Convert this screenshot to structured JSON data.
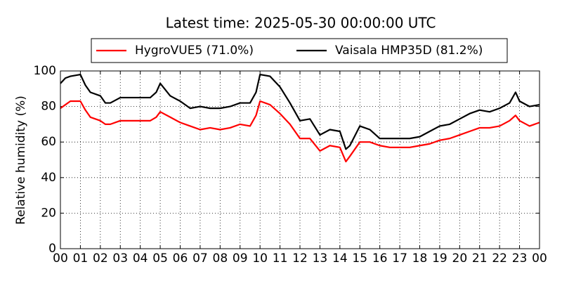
{
  "chart_data": {
    "type": "line",
    "title": "Latest time: 2025-05-30 00:00:00 UTC",
    "y_label": "Relative humidity (%)",
    "x": [
      0,
      0.25,
      0.5,
      1,
      1.25,
      1.5,
      2,
      2.25,
      2.5,
      3,
      3.5,
      4,
      4.5,
      4.8,
      5,
      5.5,
      6,
      6.5,
      7,
      7.5,
      8,
      8.5,
      9,
      9.5,
      9.8,
      10,
      10.5,
      11,
      11.5,
      12,
      12.5,
      13,
      13.5,
      14,
      14.3,
      14.5,
      15,
      15.5,
      16,
      16.5,
      17,
      17.5,
      18,
      18.5,
      19,
      19.5,
      20,
      20.5,
      21,
      21.5,
      22,
      22.5,
      22.8,
      23,
      23.5,
      24
    ],
    "series": [
      {
        "name": "HygroVUE5 (71.0%)",
        "color": "#ff0000",
        "values": [
          79,
          81,
          83,
          83,
          78,
          74,
          72,
          70,
          70,
          72,
          72,
          72,
          72,
          74,
          77,
          74,
          71,
          69,
          67,
          68,
          67,
          68,
          70,
          69,
          75,
          83,
          81,
          76,
          70,
          62,
          62,
          55,
          58,
          57,
          49,
          52,
          60,
          60,
          58,
          57,
          57,
          57,
          58,
          59,
          61,
          62,
          64,
          66,
          68,
          68,
          69,
          72,
          75,
          72,
          69,
          71
        ]
      },
      {
        "name": "Vaisala HMP35D (81.2%)",
        "color": "#000000",
        "values": [
          93,
          96,
          97,
          98,
          92,
          88,
          86,
          82,
          82,
          85,
          85,
          85,
          85,
          88,
          93,
          86,
          83,
          79,
          80,
          79,
          79,
          80,
          82,
          82,
          88,
          98,
          97,
          91,
          82,
          72,
          73,
          64,
          67,
          66,
          56,
          58,
          69,
          67,
          62,
          62,
          62,
          62,
          63,
          66,
          69,
          70,
          73,
          76,
          78,
          77,
          79,
          82,
          88,
          83,
          80,
          81
        ]
      }
    ],
    "xlim": [
      0,
      24
    ],
    "xticks": [
      {
        "value": 0,
        "label": "00"
      },
      {
        "value": 1,
        "label": "01"
      },
      {
        "value": 2,
        "label": "02"
      },
      {
        "value": 3,
        "label": "03"
      },
      {
        "value": 4,
        "label": "04"
      },
      {
        "value": 5,
        "label": "05"
      },
      {
        "value": 6,
        "label": "06"
      },
      {
        "value": 7,
        "label": "07"
      },
      {
        "value": 8,
        "label": "08"
      },
      {
        "value": 9,
        "label": "09"
      },
      {
        "value": 10,
        "label": "10"
      },
      {
        "value": 11,
        "label": "11"
      },
      {
        "value": 12,
        "label": "12"
      },
      {
        "value": 13,
        "label": "13"
      },
      {
        "value": 14,
        "label": "14"
      },
      {
        "value": 15,
        "label": "15"
      },
      {
        "value": 16,
        "label": "16"
      },
      {
        "value": 17,
        "label": "17"
      },
      {
        "value": 18,
        "label": "18"
      },
      {
        "value": 19,
        "label": "19"
      },
      {
        "value": 20,
        "label": "20"
      },
      {
        "value": 21,
        "label": "21"
      },
      {
        "value": 22,
        "label": "22"
      },
      {
        "value": 23,
        "label": "23"
      },
      {
        "value": 24,
        "label": "00"
      }
    ],
    "ylim": [
      0,
      100
    ],
    "yticks": [
      0,
      20,
      40,
      60,
      80,
      100
    ],
    "grid": true,
    "legend": "top"
  }
}
